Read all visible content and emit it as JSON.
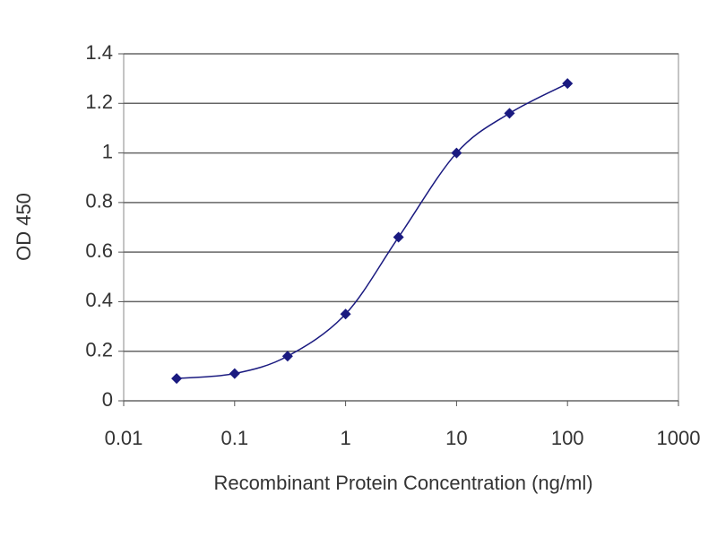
{
  "chart_data": {
    "type": "line",
    "x_label": "Recombinant Protein Concentration (ng/ml)",
    "y_label": "OD 450",
    "x": [
      0.03,
      0.1,
      0.3,
      1,
      3,
      10,
      30,
      100
    ],
    "values": [
      0.09,
      0.11,
      0.18,
      0.35,
      0.66,
      1.0,
      1.16,
      1.28
    ],
    "color": "#1a1a80",
    "xscale": "log",
    "xlim": [
      0.01,
      1000
    ],
    "xticks": [
      0.01,
      0.1,
      1,
      10,
      100,
      1000
    ],
    "ylim": [
      0,
      1.4
    ],
    "yticks": [
      0,
      0.2,
      0.4,
      0.6,
      0.8,
      1,
      1.2,
      1.4
    ],
    "grid": true
  }
}
